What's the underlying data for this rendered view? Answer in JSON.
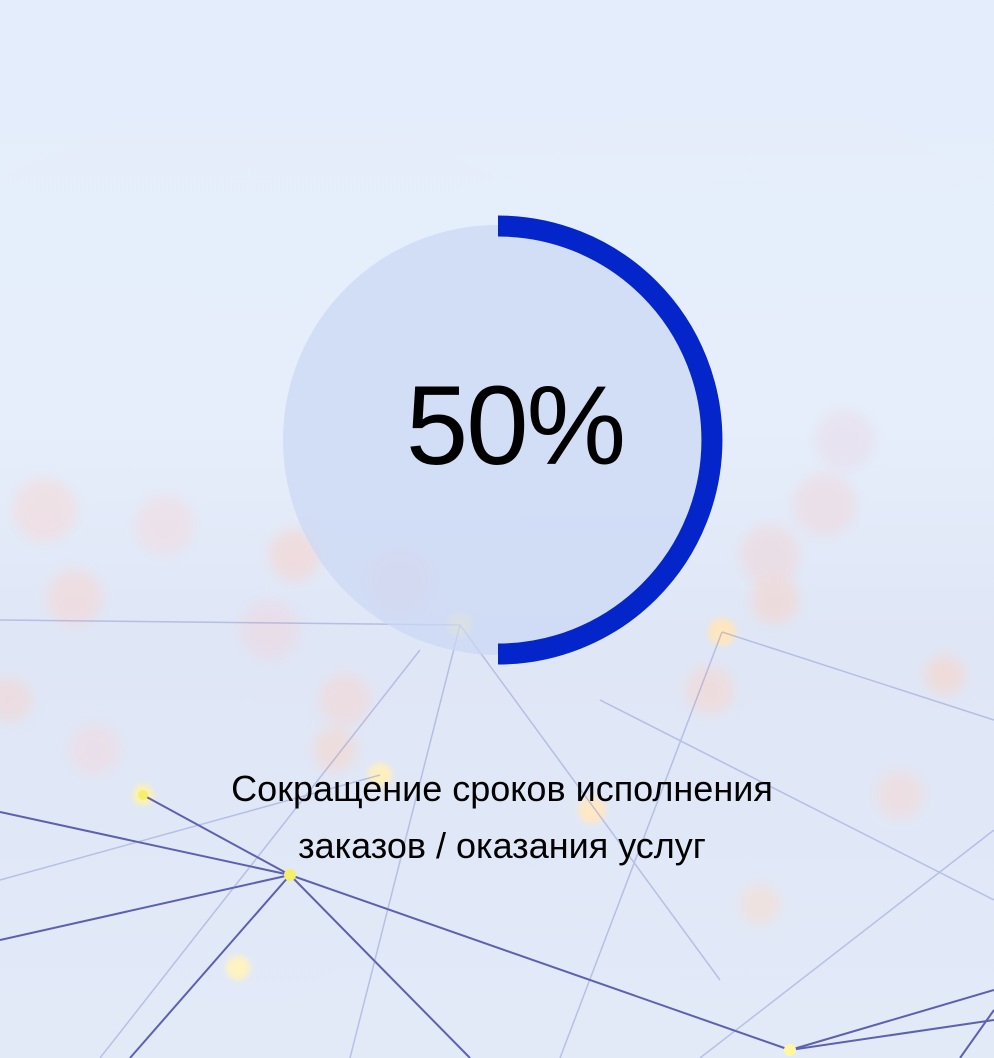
{
  "stat": {
    "value_label": "50%",
    "progress_percent": 50,
    "caption_line1": "Сокращение сроков исполнения",
    "caption_line2": "заказов / оказания услуг"
  },
  "colors": {
    "arc": "#0425c9",
    "disc": "#cbd8f4",
    "background": "#e4edfb",
    "network_lines": "#3b3fa0"
  }
}
